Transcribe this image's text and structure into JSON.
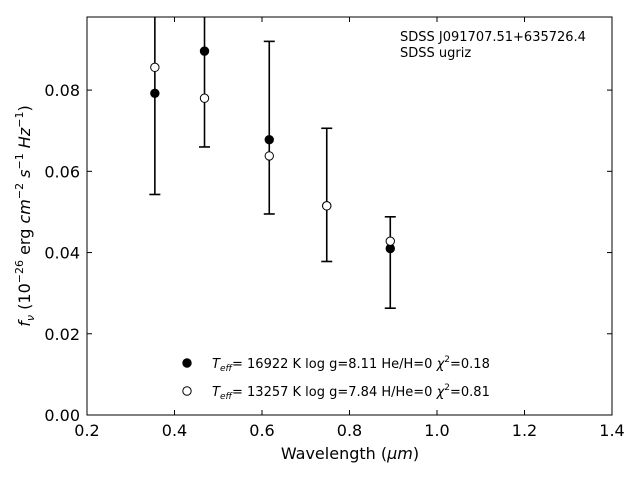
{
  "chart_data": {
    "type": "scatter",
    "title": "",
    "xlabel_text": "Wavelength (",
    "xlabel_unit": "μm",
    "xlabel_close": ")",
    "ylabel": {
      "f": "f",
      "f_sub": "ν",
      "open": " (10",
      "exp1": "−26",
      "erg": " erg ",
      "cm": "cm",
      "cm_exp": "−2",
      "s": " s",
      "s_exp": "−1",
      "hz": " Hz",
      "hz_exp": "−1",
      "close": ")"
    },
    "xlim": [
      0.2,
      1.4
    ],
    "ylim": [
      0.0,
      0.098
    ],
    "xticks": [
      0.2,
      0.4,
      0.6,
      0.8,
      1.0,
      1.2,
      1.4
    ],
    "xtick_labels": [
      "0.2",
      "0.4",
      "0.6",
      "0.8",
      "1.0",
      "1.2",
      "1.4"
    ],
    "yticks": [
      0.0,
      0.02,
      0.04,
      0.06,
      0.08
    ],
    "ytick_labels": [
      "0.00",
      "0.02",
      "0.04",
      "0.06",
      "0.08"
    ],
    "grid": false,
    "annotation": [
      "SDSS J091707.51+635726.4",
      "SDSS ugriz"
    ],
    "observed": {
      "x": [
        0.3551,
        0.4686,
        0.6166,
        0.748,
        0.8932
      ],
      "y": [
        0.0856,
        0.078,
        0.0638,
        0.0515,
        0.0428
      ],
      "err_low": [
        0.0543,
        0.066,
        0.0495,
        0.0378,
        0.0263
      ],
      "err_high": [
        0.12,
        0.12,
        0.092,
        0.0706,
        0.0488
      ]
    },
    "series": [
      {
        "marker": "filled-circle",
        "color": "#000000",
        "x": [
          0.3551,
          0.4686,
          0.6166,
          0.748,
          0.8932
        ],
        "y": [
          0.0792,
          0.0896,
          0.0678,
          0.0515,
          0.041
        ],
        "legend": {
          "T": "T",
          "T_sub": "eff",
          "rest": "= 16922 K  log g=8.11  He/H=0  ",
          "chi": "χ",
          "chi_sup": "2",
          "chi_val": "=0.18"
        }
      },
      {
        "marker": "open-circle",
        "color": "#000000",
        "x": [
          0.3551,
          0.4686,
          0.6166,
          0.748,
          0.8932
        ],
        "y": [
          0.0856,
          0.078,
          0.0638,
          0.0515,
          0.0428
        ],
        "legend": {
          "T": "T",
          "T_sub": "eff",
          "rest": "= 13257 K  log g=7.84  H/He=0  ",
          "chi": "χ",
          "chi_sup": "2",
          "chi_val": "=0.81"
        }
      }
    ],
    "legend_location": "lower-center"
  }
}
